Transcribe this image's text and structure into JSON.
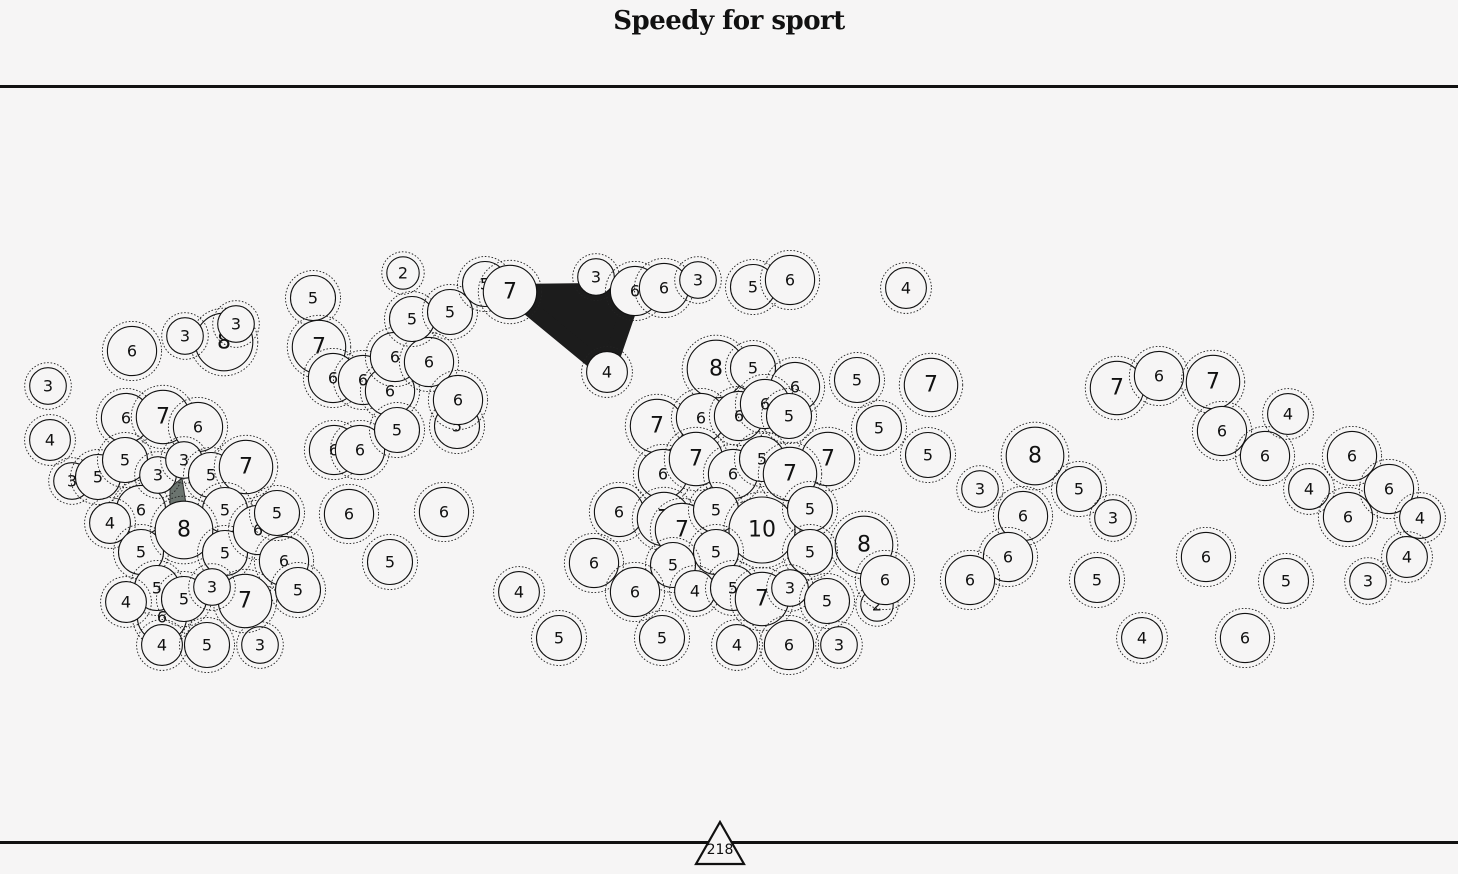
{
  "title": "Speedy for sport",
  "score": "218",
  "colors": {
    "background": "#f6f5f5",
    "bubble_fill": "#f6f5f5",
    "stroke": "#111111",
    "selected_shape": "#1c1c1c",
    "hint_shape": "#6b746f"
  },
  "bubble_values": [
    3,
    4,
    3,
    5,
    6,
    6,
    5,
    6,
    4,
    5,
    6,
    5,
    5,
    4,
    4,
    5,
    3,
    8,
    3,
    3,
    7,
    6,
    3,
    3,
    5,
    7,
    5,
    8,
    5,
    6,
    6,
    5,
    5,
    7,
    3,
    5,
    7,
    6,
    6,
    6,
    6,
    6,
    6,
    6,
    6,
    5,
    2,
    5,
    5,
    5,
    5,
    6,
    5,
    6,
    7,
    4,
    5,
    3,
    6,
    4,
    6,
    3,
    5,
    6,
    4,
    8,
    5,
    6,
    7,
    6,
    6,
    6,
    5,
    5,
    7,
    7,
    5,
    5,
    6,
    7,
    6,
    5,
    7,
    6,
    7,
    7,
    5,
    10,
    5,
    8,
    5,
    5,
    5,
    6,
    6,
    5,
    4,
    4,
    5,
    7,
    6,
    3,
    3,
    2,
    5,
    6,
    7,
    6,
    7,
    6,
    6,
    4,
    8,
    3,
    6,
    6,
    6,
    5,
    3,
    5,
    4,
    6,
    6,
    5,
    4,
    6,
    6,
    6,
    4,
    4,
    3,
    6,
    6,
    3,
    2,
    5,
    2,
    3
  ],
  "selected_group": [
    4,
    4,
    5,
    3
  ],
  "hint_group": [
    3,
    8
  ]
}
